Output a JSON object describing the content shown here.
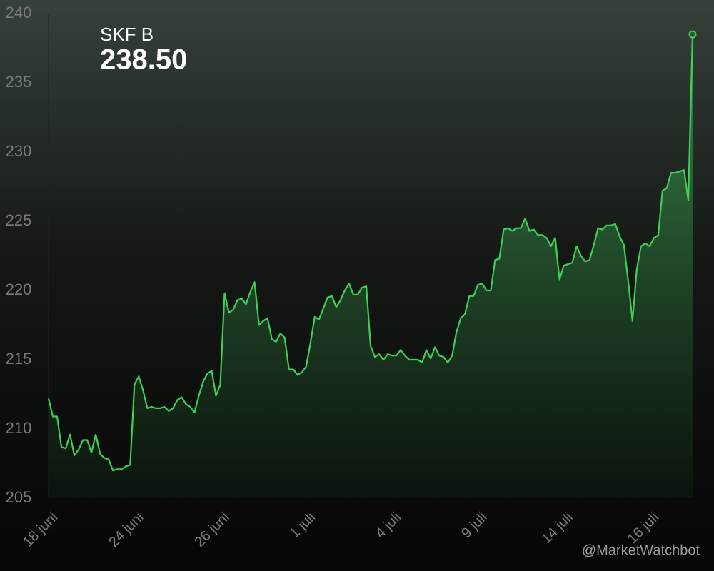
{
  "chart_data": {
    "type": "line",
    "title": "SKF B",
    "subtitle": "238.50",
    "watermark": "@MarketWatchbot",
    "categories": [
      "18 juni",
      null,
      null,
      null,
      null,
      null,
      null,
      null,
      null,
      null,
      null,
      null,
      null,
      null,
      null,
      null,
      null,
      null,
      null,
      null,
      "24 juni",
      null,
      null,
      null,
      null,
      null,
      null,
      null,
      null,
      null,
      null,
      null,
      null,
      null,
      null,
      null,
      null,
      null,
      null,
      null,
      "26 juni",
      null,
      null,
      null,
      null,
      null,
      null,
      null,
      null,
      null,
      null,
      null,
      null,
      null,
      null,
      null,
      null,
      null,
      null,
      null,
      "1 juli",
      null,
      null,
      null,
      null,
      null,
      null,
      null,
      null,
      null,
      null,
      null,
      null,
      null,
      null,
      null,
      null,
      null,
      null,
      null,
      "4 juli",
      null,
      null,
      null,
      null,
      null,
      null,
      null,
      null,
      null,
      null,
      null,
      null,
      null,
      null,
      null,
      null,
      null,
      null,
      null,
      "9 juli",
      null,
      null,
      null,
      null,
      null,
      null,
      null,
      null,
      null,
      null,
      null,
      null,
      null,
      null,
      null,
      null,
      null,
      null,
      null,
      "14 juli",
      null,
      null,
      null,
      null,
      null,
      null,
      null,
      null,
      null,
      null,
      null,
      null,
      null,
      null,
      null,
      null,
      null,
      null,
      null,
      "16 juli",
      null,
      null,
      null,
      null,
      null,
      null,
      null,
      null,
      null,
      null
    ],
    "series": [
      {
        "name": "SKF B",
        "color": "#3ecf55",
        "values": [
          212.2,
          210.9,
          210.9,
          208.7,
          208.6,
          209.6,
          208.1,
          208.5,
          209.2,
          209.2,
          208.3,
          209.6,
          208.2,
          207.9,
          207.8,
          207.0,
          207.1,
          207.1,
          207.3,
          207.4,
          213.2,
          213.8,
          212.8,
          211.5,
          211.6,
          211.5,
          211.5,
          211.6,
          211.3,
          211.5,
          212.1,
          212.3,
          211.8,
          211.6,
          211.2,
          212.4,
          213.4,
          214.0,
          214.2,
          212.4,
          213.2,
          219.8,
          218.4,
          218.6,
          219.3,
          219.4,
          219.0,
          219.9,
          220.6,
          217.5,
          217.8,
          218.0,
          216.5,
          216.3,
          216.9,
          216.6,
          214.3,
          214.3,
          213.9,
          214.1,
          214.5,
          216.2,
          218.1,
          217.9,
          218.7,
          219.5,
          219.6,
          218.8,
          219.3,
          220.0,
          220.5,
          219.7,
          219.7,
          220.2,
          220.3,
          216.0,
          215.2,
          215.4,
          215.0,
          215.4,
          215.3,
          215.3,
          215.7,
          215.3,
          215.0,
          215.0,
          215.0,
          214.8,
          215.7,
          215.1,
          215.9,
          215.3,
          215.2,
          214.8,
          215.3,
          217.0,
          218.0,
          218.3,
          219.6,
          219.6,
          220.4,
          220.5,
          220.0,
          220.0,
          222.2,
          222.3,
          224.4,
          224.5,
          224.3,
          224.5,
          224.5,
          225.2,
          224.3,
          224.4,
          224.0,
          224.0,
          223.8,
          223.2,
          223.8,
          220.8,
          221.8,
          221.9,
          222.0,
          223.2,
          222.5,
          222.1,
          222.2,
          223.3,
          224.5,
          224.4,
          224.7,
          224.7,
          224.8,
          223.9,
          223.3,
          220.7,
          217.8,
          221.5,
          223.2,
          223.4,
          223.2,
          223.8,
          224.0,
          227.2,
          227.4,
          228.5,
          228.5,
          228.6,
          228.7,
          226.5,
          238.5
        ]
      }
    ],
    "ylim": [
      205,
      240
    ],
    "yticks": [
      205,
      210,
      215,
      220,
      225,
      230,
      235,
      240
    ],
    "grid": false
  }
}
